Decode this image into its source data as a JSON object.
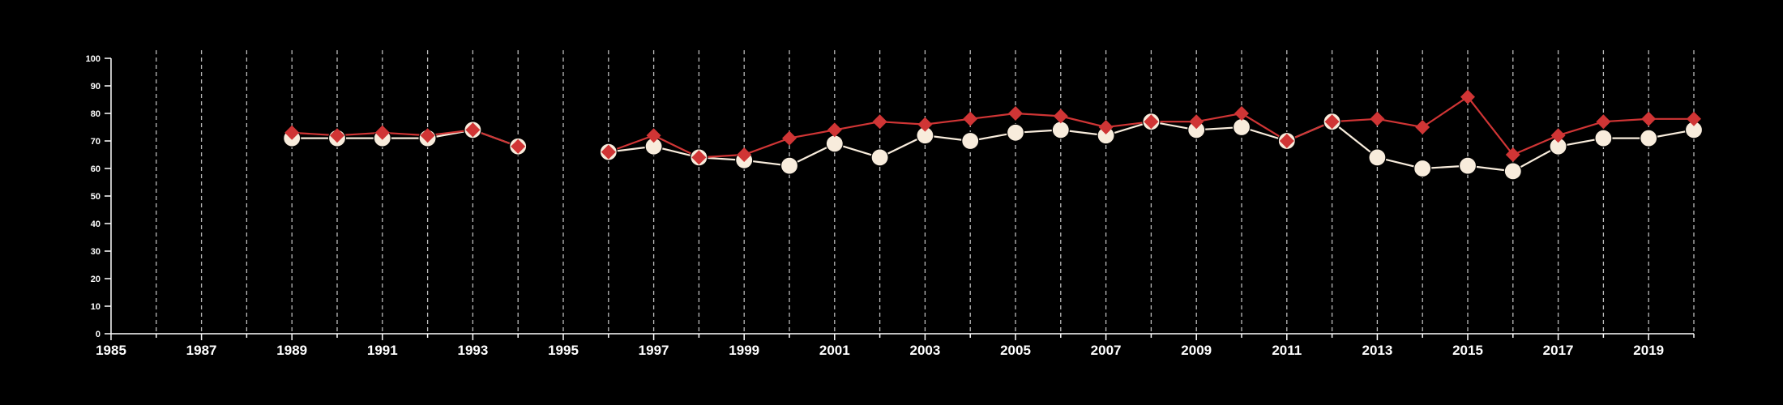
{
  "chart_data": {
    "type": "line",
    "title": "",
    "xlabel": "",
    "ylabel": "",
    "xlim": [
      1985,
      2020
    ],
    "ylim": [
      0,
      100
    ],
    "y_ticks": [
      0,
      10,
      20,
      30,
      40,
      50,
      60,
      70,
      80,
      90,
      100
    ],
    "x_tick_labels": [
      "1985",
      "1987",
      "1989",
      "1991",
      "1993",
      "1995",
      "1997",
      "1999",
      "2001",
      "2003",
      "2005",
      "2007",
      "2009",
      "2011",
      "2013",
      "2015",
      "2017",
      "2019"
    ],
    "grid": "vertical dashed lines at each year",
    "legend": "none",
    "colors": {
      "background": "#000000",
      "axis": "#ffffff",
      "grid": "#bbbbbb",
      "series_red": "#d03535",
      "series_cream": "#f8ecdc"
    },
    "series": [
      {
        "marker": "diamond",
        "color": "#d03535",
        "x": [
          1989,
          1990,
          1991,
          1992,
          1993,
          1994,
          1996,
          1997,
          1998,
          1999,
          2000,
          2001,
          2002,
          2003,
          2004,
          2005,
          2006,
          2007,
          2008,
          2009,
          2010,
          2011,
          2012,
          2013,
          2014,
          2015,
          2016,
          2017,
          2018,
          2019,
          2020
        ],
        "values": [
          73,
          72,
          73,
          72,
          74,
          68,
          66,
          72,
          64,
          65,
          71,
          74,
          77,
          76,
          78,
          80,
          79,
          75,
          77,
          77,
          80,
          70,
          77,
          78,
          75,
          86,
          65,
          72,
          77,
          78,
          78
        ]
      },
      {
        "marker": "circle",
        "color": "#f8ecdc",
        "x": [
          1989,
          1990,
          1991,
          1992,
          1993,
          1994,
          1996,
          1997,
          1998,
          1999,
          2000,
          2001,
          2002,
          2003,
          2004,
          2005,
          2006,
          2007,
          2008,
          2009,
          2010,
          2011,
          2012,
          2013,
          2014,
          2015,
          2016,
          2017,
          2018,
          2019,
          2020
        ],
        "values": [
          71,
          71,
          71,
          71,
          74,
          68,
          66,
          68,
          64,
          63,
          61,
          69,
          64,
          72,
          70,
          73,
          74,
          72,
          77,
          74,
          75,
          70,
          77,
          64,
          60,
          61,
          59,
          68,
          71,
          71,
          74
        ]
      }
    ]
  }
}
